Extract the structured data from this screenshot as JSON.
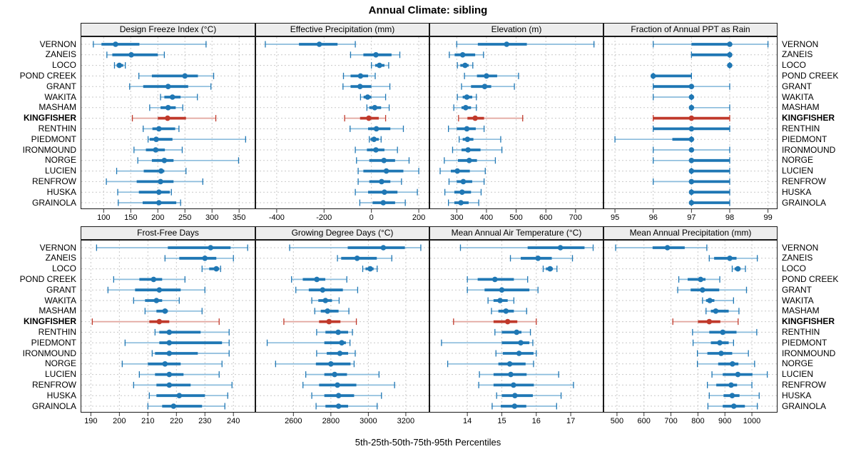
{
  "title": "Annual Climate: sibling",
  "caption": "5th-25th-50th-75th-95th Percentiles",
  "highlight_site": "KINGFISHER",
  "colors": {
    "dark_blue": "#1f77b4",
    "light_blue": "#8bbcdc",
    "dark_red": "#c0392b",
    "light_red": "#e2a59d",
    "grid": "#c9c9c9",
    "strip_bg": "#ededed",
    "border": "#1a1a1a"
  },
  "sites": [
    "VERNON",
    "ZANEIS",
    "LOCO",
    "POND CREEK",
    "GRANT",
    "WAKITA",
    "MASHAM",
    "KINGFISHER",
    "RENTHIN",
    "PIEDMONT",
    "IRONMOUND",
    "NORGE",
    "LUCIEN",
    "RENFROW",
    "HUSKA",
    "GRAINOLA"
  ],
  "percentile_labels": [
    "5th",
    "25th",
    "50th",
    "75th",
    "95th"
  ],
  "chart_data": {
    "type": "dotplot-percentiles",
    "rows": "sites listed top-to-bottom; each value array is [p5,p25,p50,p75,p95]",
    "panels": [
      {
        "key": "dfi",
        "label": "Design Freeze Index (°C)",
        "block": "top",
        "ticks": [
          100,
          150,
          200,
          250,
          300,
          350
        ],
        "range": [
          57.5,
          380
        ],
        "values": [
          [
            81,
            96,
            122,
            166,
            289
          ],
          [
            106,
            116,
            151,
            200,
            212
          ],
          [
            120,
            124,
            129,
            136,
            140
          ],
          [
            165,
            189,
            250,
            274,
            303
          ],
          [
            148,
            173,
            219,
            256,
            298
          ],
          [
            205,
            212,
            227,
            242,
            273
          ],
          [
            185,
            205,
            219,
            233,
            246
          ],
          [
            153,
            200,
            218,
            252,
            307
          ],
          [
            173,
            190,
            202,
            232,
            239
          ],
          [
            182,
            185,
            197,
            227,
            362
          ],
          [
            156,
            178,
            196,
            213,
            245
          ],
          [
            163,
            189,
            212,
            229,
            349
          ],
          [
            124,
            174,
            206,
            212,
            252
          ],
          [
            105,
            161,
            205,
            229,
            283
          ],
          [
            126,
            165,
            202,
            222,
            225
          ],
          [
            127,
            172,
            202,
            234,
            242
          ]
        ]
      },
      {
        "key": "ep",
        "label": "Effective Precipitation (mm)",
        "block": "top",
        "ticks": [
          -400,
          -200,
          0,
          200
        ],
        "range": [
          -490,
          245
        ],
        "values": [
          [
            -448,
            -306,
            -220,
            -143,
            -68
          ],
          [
            -88,
            -34,
            19,
            85,
            120
          ],
          [
            0,
            16,
            34,
            55,
            73
          ],
          [
            -118,
            -88,
            -46,
            -14,
            16
          ],
          [
            -120,
            -88,
            -48,
            0,
            78
          ],
          [
            -46,
            -33,
            -16,
            0,
            60
          ],
          [
            -19,
            -9,
            14,
            41,
            75
          ],
          [
            -113,
            -48,
            -11,
            31,
            60
          ],
          [
            -90,
            -14,
            21,
            80,
            135
          ],
          [
            -9,
            -4,
            11,
            31,
            41
          ],
          [
            -68,
            -19,
            19,
            55,
            110
          ],
          [
            -63,
            -9,
            53,
            100,
            159
          ],
          [
            -56,
            -34,
            63,
            135,
            200
          ],
          [
            -56,
            -9,
            43,
            80,
            127
          ],
          [
            -68,
            -14,
            55,
            110,
            194
          ],
          [
            -49,
            5,
            50,
            100,
            143
          ]
        ]
      },
      {
        "key": "elev",
        "label": "Elevation (m)",
        "block": "top",
        "ticks": [
          300,
          400,
          500,
          600,
          700
        ],
        "range": [
          208,
          794
        ],
        "values": [
          [
            300,
            371,
            468,
            536,
            762
          ],
          [
            275,
            293,
            320,
            362,
            390
          ],
          [
            302,
            312,
            328,
            340,
            354
          ],
          [
            326,
            368,
            400,
            436,
            508
          ],
          [
            316,
            348,
            394,
            416,
            494
          ],
          [
            302,
            320,
            334,
            352,
            366
          ],
          [
            290,
            316,
            330,
            348,
            366
          ],
          [
            306,
            336,
            362,
            392,
            522
          ],
          [
            272,
            300,
            334,
            364,
            392
          ],
          [
            308,
            320,
            336,
            356,
            448
          ],
          [
            286,
            316,
            338,
            380,
            452
          ],
          [
            258,
            304,
            342,
            368,
            430
          ],
          [
            244,
            280,
            302,
            344,
            396
          ],
          [
            274,
            300,
            322,
            352,
            392
          ],
          [
            260,
            292,
            318,
            348,
            382
          ],
          [
            272,
            292,
            314,
            340,
            374
          ]
        ]
      },
      {
        "key": "fr",
        "label": "Fraction of Annual PPT as Rain",
        "block": "top",
        "ticks": [
          95,
          96,
          97,
          98,
          99
        ],
        "range": [
          94.7,
          99.25
        ],
        "values": [
          [
            96,
            97,
            98,
            98,
            99
          ],
          [
            97,
            97,
            98,
            98,
            98
          ],
          [
            98,
            98,
            98,
            98,
            98
          ],
          [
            96,
            96,
            96,
            97,
            97
          ],
          [
            96,
            96,
            97,
            97,
            98
          ],
          [
            96,
            97,
            97,
            97,
            97
          ],
          [
            97,
            97,
            97,
            97,
            98
          ],
          [
            96,
            96,
            97,
            98,
            98
          ],
          [
            96,
            96,
            97,
            98,
            98
          ],
          [
            95,
            96.5,
            97,
            97,
            97
          ],
          [
            96,
            97,
            97,
            97,
            98
          ],
          [
            96,
            97,
            97,
            98,
            98
          ],
          [
            97,
            97,
            97,
            98,
            98
          ],
          [
            96,
            97,
            97,
            98,
            98
          ],
          [
            97,
            97,
            97,
            98,
            98
          ],
          [
            97,
            97,
            97,
            98,
            98
          ]
        ]
      },
      {
        "key": "ffd",
        "label": "Frost-Free Days",
        "block": "bottom",
        "ticks": [
          190,
          200,
          210,
          220,
          230,
          240
        ],
        "range": [
          186.4,
          247.7
        ],
        "values": [
          [
            192,
            217,
            232,
            239,
            245
          ],
          [
            216,
            221,
            230,
            234,
            240
          ],
          [
            229,
            231.5,
            234,
            235,
            235.5
          ],
          [
            198,
            207,
            212,
            215,
            223
          ],
          [
            196,
            205.5,
            214,
            221.5,
            230
          ],
          [
            205,
            209,
            213,
            215,
            221
          ],
          [
            209,
            213,
            216,
            217,
            229
          ],
          [
            190.5,
            210.5,
            214,
            217.5,
            235
          ],
          [
            212.5,
            214,
            217.5,
            228.5,
            238.5
          ],
          [
            202,
            214,
            217.5,
            236,
            238.5
          ],
          [
            211.5,
            212.5,
            217.5,
            227.5,
            238.5
          ],
          [
            201,
            210,
            216,
            221.5,
            236
          ],
          [
            207,
            212.5,
            217.5,
            222.5,
            235
          ],
          [
            205,
            213,
            217.5,
            225,
            239.5
          ],
          [
            210.5,
            213,
            221,
            230,
            238
          ],
          [
            210,
            215,
            219,
            229,
            237
          ]
        ]
      },
      {
        "key": "gdd",
        "label": "Growing Degree Days (°C)",
        "block": "bottom",
        "ticks": [
          2600,
          2800,
          3000,
          3200
        ],
        "range": [
          2397,
          3326
        ],
        "values": [
          [
            2580,
            2890,
            3080,
            3195,
            3280
          ],
          [
            2835,
            2855,
            2940,
            3045,
            3125
          ],
          [
            2970,
            2985,
            3010,
            3028,
            3047
          ],
          [
            2590,
            2650,
            2725,
            2770,
            2885
          ],
          [
            2613,
            2682,
            2756,
            2864,
            2943
          ],
          [
            2698,
            2733,
            2771,
            2806,
            2844
          ],
          [
            2714,
            2746,
            2782,
            2841,
            2896
          ],
          [
            2549,
            2737,
            2790,
            2851,
            2936
          ],
          [
            2724,
            2771,
            2839,
            2892,
            2915
          ],
          [
            2460,
            2765,
            2858,
            2880,
            2902
          ],
          [
            2724,
            2778,
            2848,
            2892,
            2930
          ],
          [
            2505,
            2720,
            2800,
            2905,
            2924
          ],
          [
            2666,
            2765,
            2820,
            2886,
            3057
          ],
          [
            2651,
            2737,
            2835,
            2936,
            3140
          ],
          [
            2698,
            2765,
            2841,
            2924,
            3070
          ],
          [
            2721,
            2771,
            2841,
            2892,
            3047
          ]
        ]
      },
      {
        "key": "maat",
        "label": "Mean Annual Air Temperature (°C)",
        "block": "bottom",
        "ticks": [
          14,
          15,
          16,
          17
        ],
        "range": [
          12.9,
          17.95
        ],
        "values": [
          [
            13.8,
            15.75,
            16.7,
            17.4,
            17.65
          ],
          [
            15.25,
            15.55,
            16.05,
            16.45,
            17.05
          ],
          [
            16.2,
            16.28,
            16.4,
            16.48,
            16.6
          ],
          [
            14.0,
            14.3,
            14.8,
            15.35,
            15.75
          ],
          [
            14.0,
            14.5,
            15.0,
            15.8,
            16.05
          ],
          [
            14.6,
            14.76,
            14.95,
            15.17,
            15.35
          ],
          [
            14.7,
            14.9,
            15.12,
            15.35,
            15.72
          ],
          [
            13.6,
            14.76,
            15.17,
            15.45,
            16.0
          ],
          [
            14.8,
            15.0,
            15.43,
            15.57,
            15.83
          ],
          [
            13.25,
            15.0,
            15.55,
            15.8,
            15.9
          ],
          [
            14.83,
            15.03,
            15.5,
            15.92,
            16.0
          ],
          [
            13.43,
            14.9,
            15.23,
            15.69,
            15.92
          ],
          [
            14.35,
            14.76,
            15.26,
            15.72,
            16.65
          ],
          [
            14.33,
            14.76,
            15.34,
            15.93,
            17.08
          ],
          [
            14.85,
            15.0,
            15.38,
            15.9,
            16.72
          ],
          [
            14.72,
            14.97,
            15.37,
            15.71,
            16.59
          ]
        ]
      },
      {
        "key": "map",
        "label": "Mean Annual Precipitation (mm)",
        "block": "bottom",
        "ticks": [
          500,
          600,
          700,
          800,
          900,
          1000
        ],
        "range": [
          450,
          1095
        ],
        "values": [
          [
            495,
            632,
            687,
            751,
            833
          ],
          [
            842,
            860,
            918,
            943,
            1020
          ],
          [
            927,
            936,
            948,
            958,
            976
          ],
          [
            729,
            762,
            810,
            828,
            881
          ],
          [
            725,
            773,
            817,
            879,
            980
          ],
          [
            817,
            830,
            844,
            861,
            932
          ],
          [
            830,
            848,
            866,
            914,
            952
          ],
          [
            707,
            800,
            842,
            883,
            949
          ],
          [
            780,
            842,
            892,
            943,
            1018
          ],
          [
            782,
            848,
            881,
            914,
            932
          ],
          [
            798,
            835,
            886,
            927,
            987
          ],
          [
            798,
            875,
            928,
            950,
            1010
          ],
          [
            852,
            892,
            948,
            1002,
            1057
          ],
          [
            835,
            868,
            923,
            945,
            1000
          ],
          [
            842,
            895,
            927,
            954,
            1027
          ],
          [
            837,
            892,
            933,
            974,
            1020
          ]
        ]
      }
    ]
  }
}
